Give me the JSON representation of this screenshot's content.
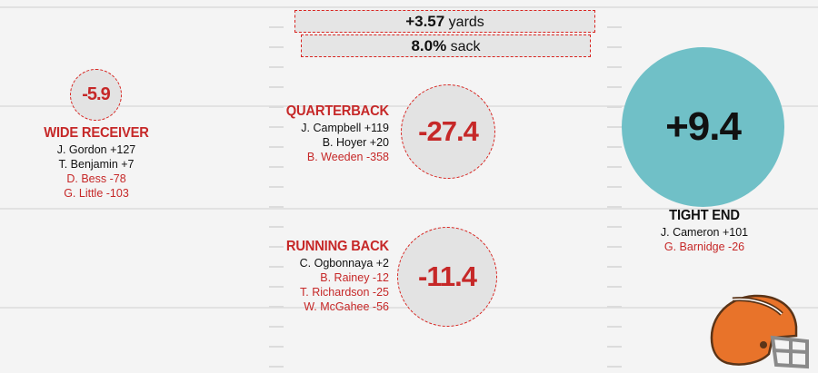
{
  "summary": {
    "yards": "+3.57",
    "yards_unit": "yards",
    "sack": "8.0%",
    "sack_unit": "sack"
  },
  "wide_receiver": {
    "title": "WIDE RECEIVER",
    "value": "-5.9",
    "players": [
      {
        "name": "J. Gordon +127",
        "tone": "positive"
      },
      {
        "name": "T. Benjamin +7",
        "tone": "positive"
      },
      {
        "name": "D. Bess -78",
        "tone": "negative"
      },
      {
        "name": "G. Little -103",
        "tone": "negative"
      }
    ]
  },
  "quarterback": {
    "title": "QUARTERBACK",
    "value": "-27.4",
    "players": [
      {
        "name": "J. Campbell +119",
        "tone": "positive"
      },
      {
        "name": "B. Hoyer +20",
        "tone": "positive"
      },
      {
        "name": "B. Weeden -358",
        "tone": "negative"
      }
    ]
  },
  "running_back": {
    "title": "RUNNING BACK",
    "value": "-11.4",
    "players": [
      {
        "name": "C. Ogbonnaya +2",
        "tone": "positive"
      },
      {
        "name": "B. Rainey -12",
        "tone": "negative"
      },
      {
        "name": "T. Richardson -25",
        "tone": "negative"
      },
      {
        "name": "W. McGahee -56",
        "tone": "negative"
      }
    ]
  },
  "tight_end": {
    "title": "TIGHT END",
    "value": "+9.4",
    "players": [
      {
        "name": "J. Cameron +101",
        "tone": "positive"
      },
      {
        "name": "G. Barnidge -26",
        "tone": "negative"
      }
    ]
  },
  "colors": {
    "negative": "#c62828",
    "positive_circle": "#70c0c7",
    "neutral_circle": "#e3e3e3",
    "field_line": "#e2e2e2",
    "helmet_orange": "#e8732a",
    "helmet_brown": "#5a3418"
  },
  "icons": {
    "team_logo": "football-helmet-icon"
  }
}
